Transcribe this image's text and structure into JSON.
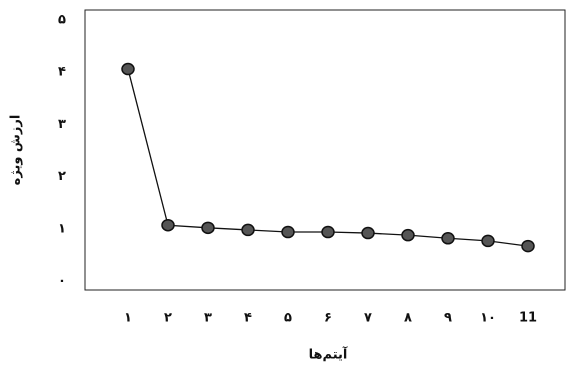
{
  "chart_data": {
    "type": "line",
    "x_label": "آیتم‌ها",
    "y_label": "ارزش ویژه",
    "categories": [
      "۱",
      "۲",
      "۳",
      "۴",
      "۵",
      "۶",
      "۷",
      "۸",
      "۹",
      "۱۰",
      "11"
    ],
    "values": [
      4.06,
      1.07,
      1.02,
      0.98,
      0.94,
      0.94,
      0.92,
      0.88,
      0.82,
      0.77,
      0.67
    ],
    "color": "#555555",
    "ylim": [
      -0.17,
      5.19
    ],
    "yticks": [
      {
        "value": 0,
        "label": "۰"
      },
      {
        "value": 1,
        "label": "۱"
      },
      {
        "value": 2,
        "label": "۲"
      },
      {
        "value": 3,
        "label": "۳"
      },
      {
        "value": 4,
        "label": "۴"
      },
      {
        "value": 5,
        "label": "۵"
      }
    ],
    "grid": false
  }
}
